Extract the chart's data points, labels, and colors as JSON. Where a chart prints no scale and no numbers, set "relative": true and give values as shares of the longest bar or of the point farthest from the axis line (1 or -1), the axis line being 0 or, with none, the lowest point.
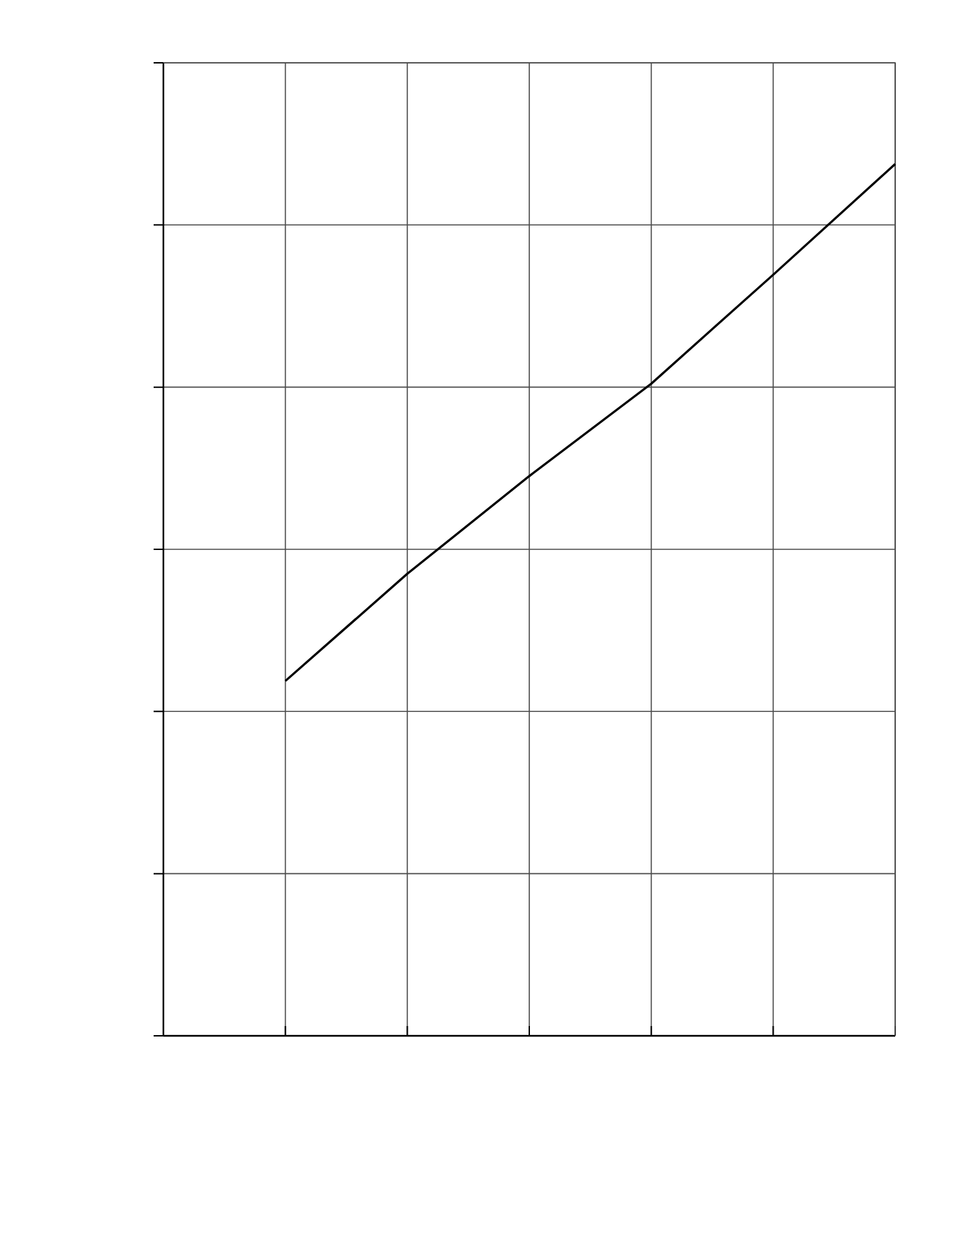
{
  "chart_data": {
    "type": "line",
    "relative": true,
    "grid": true,
    "color": "#000000",
    "categories": [
      null,
      null,
      null,
      null,
      null,
      null,
      null
    ],
    "values": [
      null,
      0.407,
      0.53,
      0.642,
      0.748,
      0.873,
      1
    ]
  }
}
